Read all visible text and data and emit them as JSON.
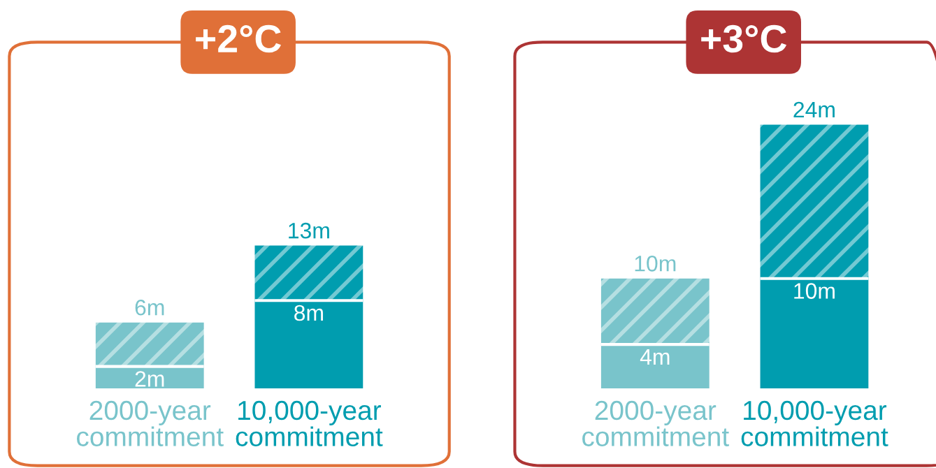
{
  "chart_data": [
    {
      "type": "bar",
      "title": "+2°C",
      "stacked": true,
      "categories": [
        "2000-year\ncommitment",
        "10,000-year\ncommitment"
      ],
      "series": [
        {
          "colors": [
            "#79c4cb",
            "#009daf"
          ],
          "values": [
            2,
            8
          ],
          "value_labels": [
            "2m",
            "8m"
          ]
        },
        {
          "colors": [
            "#79c4cb",
            "#009daf"
          ],
          "values": [
            4,
            5
          ]
        }
      ],
      "totals": [
        "6m",
        "13m"
      ]
    },
    {
      "type": "bar",
      "title": "+3°C",
      "stacked": true,
      "categories": [
        "2000-year\ncommitment",
        "10,000-year\ncommitment"
      ],
      "series": [
        {
          "colors": [
            "#79c4cb",
            "#009daf"
          ],
          "values": [
            4,
            10
          ],
          "value_labels": [
            "4m",
            "10m"
          ]
        },
        {
          "colors": [
            "#79c4cb",
            "#009daf"
          ],
          "values": [
            6,
            14
          ]
        }
      ],
      "totals": [
        "10m",
        "24m"
      ]
    }
  ]
}
